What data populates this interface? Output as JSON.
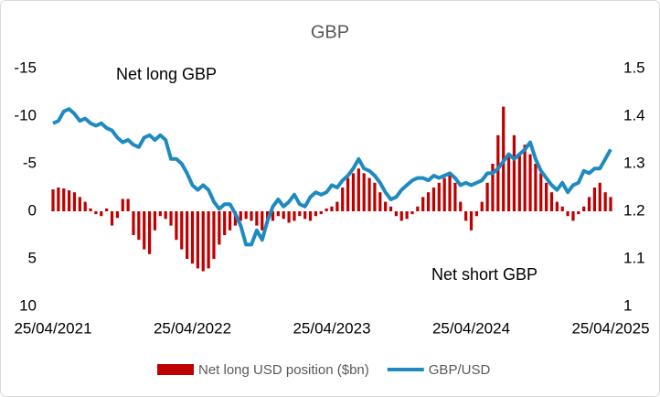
{
  "chart_data": {
    "type": "bar-line",
    "title": "GBP",
    "annotations": [
      "Net long GBP",
      "Net short GBP"
    ],
    "categories": [
      "25/04/2021",
      null,
      null,
      null,
      null,
      null,
      null,
      null,
      null,
      null,
      null,
      null,
      null,
      null,
      null,
      null,
      null,
      null,
      null,
      null,
      null,
      null,
      null,
      null,
      null,
      null,
      "25/04/2022",
      null,
      null,
      null,
      null,
      null,
      null,
      null,
      null,
      null,
      null,
      null,
      null,
      null,
      null,
      null,
      null,
      null,
      null,
      null,
      null,
      null,
      null,
      null,
      null,
      null,
      "25/04/2023",
      null,
      null,
      null,
      null,
      null,
      null,
      null,
      null,
      null,
      null,
      null,
      null,
      null,
      null,
      null,
      null,
      null,
      null,
      null,
      null,
      null,
      null,
      null,
      null,
      null,
      "25/04/2024",
      null,
      null,
      null,
      null,
      null,
      null,
      null,
      null,
      null,
      null,
      null,
      null,
      null,
      null,
      null,
      null,
      null,
      null,
      null,
      null,
      null,
      null,
      null,
      null,
      null,
      "25/04/2025"
    ],
    "series": [
      {
        "name": "Net long USD position ($bn)",
        "type": "bar",
        "color": "#c00000",
        "values": [
          -2.3,
          -2.5,
          -2.4,
          -2.2,
          -2,
          -1.5,
          -1,
          -0.3,
          0.3,
          0.5,
          -0.3,
          1.5,
          0.7,
          -1.3,
          -1.3,
          2.5,
          3,
          4,
          4.5,
          2,
          0.5,
          0.8,
          1.5,
          3,
          4,
          5,
          5.5,
          6,
          6.3,
          6,
          5,
          3.5,
          2.5,
          2,
          1.5,
          1,
          0.8,
          1,
          1.5,
          2,
          1.3,
          1,
          0.5,
          0.8,
          1.2,
          1,
          0.5,
          0.8,
          1,
          0.5,
          0.3,
          -0.3,
          -0.5,
          -1,
          -2.5,
          -3.5,
          -4,
          -4.5,
          -4,
          -3.5,
          -3,
          -2,
          -1,
          -0.5,
          0.5,
          1,
          0.8,
          0.3,
          -0.5,
          -1.5,
          -2,
          -2.5,
          -3,
          -3.5,
          -4,
          -3,
          -1,
          1,
          2,
          0.5,
          -1,
          -3,
          -5,
          -8,
          -11,
          -6,
          -8,
          -6,
          -7,
          -6,
          -5,
          -4,
          -3,
          -2,
          -1,
          -0.5,
          0.5,
          1,
          0.3,
          -0.5,
          -1.5,
          -2.5,
          -3,
          -2,
          -1.5
        ]
      },
      {
        "name": "GBP/USD",
        "type": "line",
        "axis": "y2",
        "color": "#1f8ac0",
        "values": [
          1.385,
          1.39,
          1.41,
          1.415,
          1.405,
          1.39,
          1.395,
          1.385,
          1.38,
          1.385,
          1.375,
          1.37,
          1.355,
          1.345,
          1.35,
          1.34,
          1.335,
          1.355,
          1.36,
          1.35,
          1.36,
          1.35,
          1.31,
          1.31,
          1.3,
          1.28,
          1.255,
          1.245,
          1.255,
          1.245,
          1.22,
          1.205,
          1.215,
          1.215,
          1.195,
          1.17,
          1.13,
          1.13,
          1.16,
          1.14,
          1.18,
          1.21,
          1.225,
          1.21,
          1.22,
          1.235,
          1.215,
          1.21,
          1.23,
          1.24,
          1.235,
          1.24,
          1.255,
          1.25,
          1.265,
          1.275,
          1.29,
          1.31,
          1.29,
          1.285,
          1.275,
          1.26,
          1.24,
          1.225,
          1.23,
          1.245,
          1.255,
          1.265,
          1.27,
          1.27,
          1.265,
          1.275,
          1.27,
          1.275,
          1.28,
          1.27,
          1.255,
          1.26,
          1.255,
          1.26,
          1.265,
          1.28,
          1.28,
          1.29,
          1.305,
          1.32,
          1.31,
          1.32,
          1.33,
          1.345,
          1.31,
          1.285,
          1.27,
          1.255,
          1.245,
          1.26,
          1.24,
          1.255,
          1.26,
          1.285,
          1.28,
          1.29,
          1.29,
          1.31,
          1.33
        ]
      }
    ],
    "ylim": [
      -15,
      10
    ],
    "y_reversed": true,
    "yticks": [
      -15,
      -10,
      -5,
      0,
      5,
      10
    ],
    "y2lim": [
      1,
      1.5
    ],
    "y2ticks": [
      1,
      1.1,
      1.2,
      1.3,
      1.4,
      1.5
    ],
    "grid": false,
    "legend": "bottom"
  }
}
